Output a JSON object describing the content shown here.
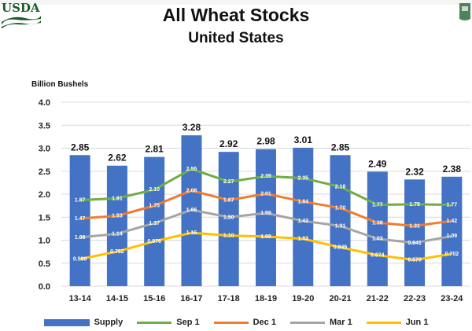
{
  "header": {
    "logo_text": "USDA",
    "title": "All Wheat Stocks",
    "subtitle": "United States"
  },
  "chart_data": {
    "type": "bar",
    "title": "All Wheat Stocks",
    "subtitle": "United States",
    "ylabel": "Billion Bushels",
    "xlabel": "",
    "ylim": [
      0,
      4.0
    ],
    "yticks": [
      "0.0",
      "0.5",
      "1.0",
      "1.5",
      "2.0",
      "2.5",
      "3.0",
      "3.5",
      "4.0"
    ],
    "categories": [
      "13-14",
      "14-15",
      "15-16",
      "16-17",
      "17-18",
      "18-19",
      "19-20",
      "20-21",
      "21-22",
      "22-23",
      "23-24"
    ],
    "bar_series": {
      "name": "Supply",
      "color": "#4472c4",
      "values": [
        2.85,
        2.62,
        2.81,
        3.28,
        2.92,
        2.98,
        3.01,
        2.85,
        2.49,
        2.32,
        2.38
      ],
      "labels": [
        "2.85",
        "2.62",
        "2.81",
        "3.28",
        "2.92",
        "2.98",
        "3.01",
        "2.85",
        "2.49",
        "2.32",
        "2.38"
      ]
    },
    "series": [
      {
        "name": "Sep 1",
        "color": "#70ad47",
        "values": [
          1.87,
          1.91,
          2.1,
          2.55,
          2.27,
          2.39,
          2.35,
          2.16,
          1.77,
          1.78,
          1.77
        ],
        "labels": [
          "1.87",
          "1.91",
          "2.10",
          "2.55",
          "2.27",
          "2.39",
          "2.35",
          "2.16",
          "1.77",
          "1.78",
          "1.77"
        ]
      },
      {
        "name": "Dec 1",
        "color": "#ed7d31",
        "values": [
          1.47,
          1.53,
          1.75,
          2.08,
          1.87,
          2.01,
          1.84,
          1.7,
          1.38,
          1.31,
          1.42
        ],
        "labels": [
          "1.47",
          "1.53",
          "1.75",
          "2.08",
          "1.87",
          "2.01",
          "1.84",
          "1.70",
          "1.38",
          "1.31",
          "1.42"
        ]
      },
      {
        "name": "Mar 1",
        "color": "#a5a5a5",
        "values": [
          1.06,
          1.14,
          1.37,
          1.66,
          1.5,
          1.59,
          1.42,
          1.31,
          1.03,
          0.941,
          1.09
        ],
        "labels": [
          "1.06",
          "1.14",
          "1.37",
          "1.66",
          "1.50",
          "1.59",
          "1.42",
          "1.31",
          "1.03",
          "0.941",
          "1.09"
        ]
      },
      {
        "name": "Jun 1",
        "color": "#ffc000",
        "values": [
          0.59,
          0.752,
          0.976,
          1.16,
          1.1,
          1.08,
          1.03,
          0.845,
          0.674,
          0.57,
          0.702
        ],
        "labels": [
          "0.590",
          "0.752",
          "0.976",
          "1.16",
          "1.10",
          "1.08",
          "1.03",
          "0.845",
          "0.674",
          "0.570",
          "0.702"
        ]
      }
    ],
    "grid": true,
    "legend_position": "bottom"
  }
}
